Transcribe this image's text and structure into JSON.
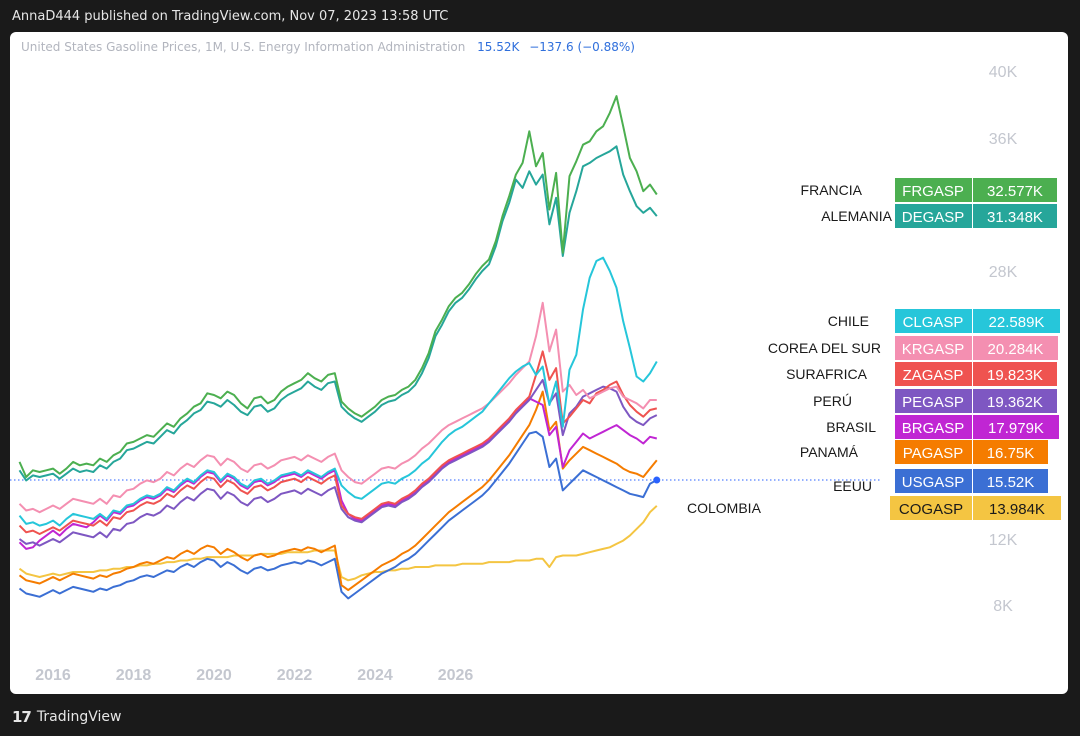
{
  "header": {
    "text": "AnnaD444 published on TradingView.com, Nov 07, 2023 13:58 UTC"
  },
  "legend": {
    "title": "United States Gasoline Prices, 1M, U.S. Energy Information Administration",
    "value": "15.52K",
    "change": "−137.6 (−0.88%)"
  },
  "footer": {
    "logo_glyph": "17",
    "brand": "TradingView"
  },
  "chart_data": {
    "type": "line",
    "x_ticks": [
      "2016",
      "2018",
      "2020",
      "2022",
      "2024",
      "2026"
    ],
    "y_ticks": [
      "8K",
      "12K",
      "28K",
      "36K",
      "40K"
    ],
    "y_tick_values": [
      8000,
      12000,
      28000,
      36000,
      40000
    ],
    "xlim": [
      "2015-07",
      "2027-04"
    ],
    "grid": false,
    "last_value_line_color": "#2962ff",
    "series": [
      {
        "country": "FRANCIA",
        "ticker": "FRGASP",
        "last": "32.577K",
        "color": "#4caf50",
        "values": [
          16600,
          15700,
          16100,
          16000,
          16100,
          16200,
          15900,
          16200,
          16600,
          16400,
          16500,
          16400,
          16800,
          16600,
          17000,
          17200,
          17700,
          17800,
          18000,
          18200,
          18100,
          18500,
          18900,
          18700,
          19200,
          19500,
          19900,
          20100,
          20700,
          20600,
          20400,
          20800,
          20600,
          20100,
          19800,
          20400,
          20500,
          20100,
          20300,
          20800,
          21100,
          21300,
          21500,
          21900,
          21600,
          21400,
          21800,
          21900,
          20200,
          19800,
          19500,
          19300,
          19600,
          19900,
          20300,
          20500,
          20600,
          20900,
          21100,
          21500,
          22200,
          23100,
          24400,
          25100,
          25900,
          26400,
          26700,
          27200,
          27800,
          28300,
          28700,
          29800,
          31300,
          32500,
          33800,
          34500,
          36400,
          34300,
          35100,
          31700,
          33900,
          29100,
          33700,
          34600,
          35600,
          35800,
          36400,
          36700,
          37500,
          38500,
          36700,
          34800,
          34000,
          32800,
          33200,
          32600
        ]
      },
      {
        "country": "ALEMANIA",
        "ticker": "DEGASP",
        "last": "31.348K",
        "color": "#26a69a",
        "values": [
          16100,
          15500,
          15800,
          15700,
          15800,
          15900,
          15600,
          15900,
          16200,
          16000,
          16100,
          16000,
          16400,
          16200,
          16600,
          16800,
          17300,
          17400,
          17600,
          17800,
          17700,
          18100,
          18500,
          18300,
          18800,
          19100,
          19500,
          19700,
          20200,
          20100,
          19900,
          20300,
          20000,
          19600,
          19400,
          19900,
          20000,
          19600,
          19800,
          20300,
          20600,
          20800,
          21000,
          21400,
          21100,
          20900,
          21300,
          21400,
          19900,
          19500,
          19200,
          19000,
          19300,
          19600,
          20000,
          20200,
          20300,
          20600,
          20800,
          21200,
          21900,
          22800,
          24100,
          24800,
          25600,
          26100,
          26400,
          26900,
          27500,
          28000,
          28400,
          29500,
          31000,
          32100,
          33500,
          33000,
          34000,
          33200,
          33800,
          30800,
          32400,
          28900,
          31500,
          32800,
          34300,
          34500,
          34800,
          35000,
          35200,
          35500,
          33800,
          32800,
          31900,
          31500,
          31800,
          31300
        ]
      },
      {
        "country": "CHILE",
        "ticker": "CLGASP",
        "last": "22.589K",
        "color": "#26c6da",
        "values": [
          13400,
          12900,
          13000,
          12800,
          12900,
          13100,
          12800,
          13200,
          13500,
          13400,
          13300,
          13200,
          13500,
          13200,
          13700,
          13600,
          14000,
          14100,
          14400,
          14600,
          14500,
          14700,
          15100,
          14900,
          15300,
          15600,
          15400,
          15800,
          16100,
          16000,
          15500,
          15900,
          15700,
          15300,
          15100,
          15500,
          15600,
          15300,
          15500,
          15800,
          15900,
          16000,
          15800,
          16100,
          15900,
          15700,
          16000,
          16200,
          15200,
          14800,
          14500,
          14400,
          14700,
          15000,
          15300,
          15400,
          15300,
          15600,
          15800,
          16100,
          16500,
          16800,
          17300,
          17800,
          18200,
          18500,
          18700,
          19000,
          19300,
          19600,
          20100,
          20600,
          21100,
          21600,
          22000,
          22300,
          22500,
          21800,
          22300,
          20000,
          21400,
          18700,
          22100,
          23000,
          25700,
          27600,
          28600,
          28800,
          28000,
          27000,
          25000,
          23400,
          21700,
          21400,
          21900,
          22600
        ]
      },
      {
        "country": "COREA DEL SUR",
        "ticker": "KRGASP",
        "last": "20.284K",
        "color": "#f48fb1",
        "values": [
          14100,
          13700,
          13800,
          13600,
          13800,
          14000,
          13800,
          14100,
          14400,
          14300,
          14200,
          14100,
          14400,
          14100,
          14600,
          14500,
          14900,
          15000,
          15300,
          15500,
          15400,
          15600,
          16000,
          15800,
          16200,
          16500,
          16300,
          16700,
          17000,
          16900,
          16400,
          16800,
          16600,
          16200,
          16000,
          16400,
          16500,
          16200,
          16400,
          16700,
          16800,
          16900,
          16700,
          17000,
          16800,
          16600,
          16900,
          17100,
          16100,
          15700,
          15400,
          15300,
          15600,
          15900,
          16200,
          16300,
          16200,
          16500,
          16700,
          17000,
          17400,
          17700,
          18100,
          18500,
          18800,
          19000,
          19200,
          19400,
          19600,
          19800,
          20100,
          20500,
          20900,
          21300,
          21800,
          22200,
          22600,
          24100,
          26100,
          23200,
          24500,
          20800,
          21200,
          20600,
          20900,
          20400,
          20600,
          20800,
          21000,
          21100,
          20500,
          20300,
          20100,
          19800,
          20300,
          20300
        ]
      },
      {
        "country": "SURAFRICA",
        "ticker": "ZAGASP",
        "last": "19.823K",
        "color": "#ef5350",
        "values": [
          12800,
          12400,
          12500,
          12300,
          12500,
          12700,
          12500,
          12800,
          13100,
          13000,
          12900,
          12800,
          13100,
          12800,
          13300,
          13200,
          13600,
          13700,
          14000,
          14200,
          14100,
          14300,
          14700,
          14500,
          14900,
          15200,
          15000,
          15400,
          15700,
          15600,
          15100,
          15500,
          15300,
          14900,
          14700,
          15100,
          15200,
          14900,
          15100,
          15400,
          15500,
          15600,
          15400,
          15700,
          15500,
          15300,
          15600,
          15800,
          14000,
          13500,
          13300,
          13200,
          13500,
          13800,
          14100,
          14200,
          14100,
          14400,
          14600,
          14900,
          15300,
          15600,
          16000,
          16400,
          16700,
          16900,
          17100,
          17300,
          17500,
          17700,
          18000,
          18400,
          18800,
          19200,
          19700,
          20100,
          20500,
          21800,
          23200,
          21500,
          22200,
          18900,
          19300,
          19800,
          20300,
          20100,
          20700,
          20900,
          21200,
          21400,
          20600,
          20000,
          19600,
          19300,
          19700,
          19800
        ]
      },
      {
        "country": "PERÚ",
        "ticker": "PEGASP",
        "last": "19.362K",
        "color": "#7e57c2",
        "values": [
          12000,
          11700,
          11800,
          11600,
          11800,
          12000,
          11800,
          12100,
          12400,
          12300,
          12200,
          12100,
          12400,
          12100,
          12600,
          12500,
          12900,
          13000,
          13300,
          13500,
          13400,
          13600,
          14000,
          13800,
          14200,
          14500,
          14300,
          14700,
          15000,
          14900,
          14400,
          14800,
          14600,
          14200,
          14000,
          14400,
          14500,
          14200,
          14400,
          14700,
          14800,
          14900,
          14700,
          15000,
          14800,
          14600,
          14900,
          15100,
          13800,
          13300,
          13100,
          13000,
          13300,
          13600,
          13900,
          14000,
          13900,
          14200,
          14400,
          14700,
          15100,
          15400,
          15800,
          16200,
          16500,
          16700,
          16900,
          17100,
          17300,
          17500,
          17800,
          18200,
          18600,
          19000,
          19500,
          19900,
          20300,
          20900,
          21500,
          20100,
          20700,
          18200,
          19500,
          19900,
          20500,
          20700,
          20900,
          21100,
          21000,
          20800,
          19900,
          19300,
          19000,
          18800,
          19200,
          19400
        ]
      },
      {
        "country": "BRASIL",
        "ticker": "BRGASP",
        "last": "17.979K",
        "color": "#c026d3",
        "values": [
          11800,
          11400,
          11500,
          11900,
          12200,
          12500,
          12200,
          12600,
          12900,
          12800,
          12700,
          13000,
          13400,
          13100,
          13600,
          13500,
          13900,
          14000,
          14300,
          14500,
          14400,
          14600,
          15000,
          14800,
          15200,
          15500,
          15300,
          15700,
          16000,
          15900,
          15400,
          15800,
          15600,
          15200,
          15000,
          15400,
          15500,
          15200,
          15400,
          15700,
          15800,
          15900,
          15700,
          16000,
          15800,
          15600,
          15900,
          16100,
          14300,
          13500,
          13200,
          13100,
          13400,
          13700,
          14000,
          14100,
          14000,
          14300,
          14500,
          14800,
          15200,
          15500,
          15900,
          16300,
          16600,
          16800,
          17000,
          17200,
          17400,
          17600,
          17900,
          18300,
          18700,
          19100,
          19600,
          20000,
          20400,
          20200,
          20000,
          18200,
          18700,
          16300,
          17300,
          17800,
          18300,
          18000,
          18200,
          18400,
          18600,
          18800,
          18500,
          18200,
          18000,
          17700,
          18100,
          18000
        ]
      },
      {
        "country": "PANAMÁ",
        "ticker": "PAGASP",
        "last": "16.75K",
        "color": "#f57c00",
        "values": [
          9800,
          9500,
          9400,
          9300,
          9500,
          9700,
          9500,
          9700,
          9900,
          9800,
          9700,
          9600,
          9800,
          9700,
          9900,
          10000,
          10200,
          10300,
          10500,
          10600,
          10500,
          10700,
          10900,
          10800,
          11100,
          11300,
          11100,
          11400,
          11600,
          11500,
          11100,
          11400,
          11200,
          10900,
          10700,
          11000,
          11100,
          10900,
          11000,
          11200,
          11300,
          11400,
          11300,
          11500,
          11400,
          11200,
          11400,
          11600,
          9200,
          8900,
          9200,
          9500,
          9800,
          10100,
          10400,
          10600,
          10800,
          11100,
          11300,
          11600,
          12000,
          12400,
          12800,
          13200,
          13600,
          13900,
          14200,
          14500,
          14800,
          15100,
          15500,
          16000,
          16500,
          17000,
          17600,
          18200,
          18800,
          19700,
          20800,
          18500,
          19000,
          16200,
          16700,
          17100,
          17500,
          17300,
          17100,
          16900,
          16700,
          16500,
          16200,
          16000,
          15900,
          15700,
          16200,
          16700
        ]
      },
      {
        "country": "EEUU",
        "ticker": "USGASP",
        "last": "15.52K",
        "color": "#3b6fd4",
        "values": [
          9000,
          8700,
          8600,
          8500,
          8700,
          8900,
          8700,
          8900,
          9100,
          9000,
          8900,
          8800,
          9000,
          8900,
          9100,
          9200,
          9400,
          9500,
          9700,
          9800,
          9700,
          9900,
          10100,
          10000,
          10300,
          10500,
          10300,
          10600,
          10800,
          10700,
          10300,
          10600,
          10400,
          10100,
          9900,
          10200,
          10300,
          10100,
          10200,
          10400,
          10500,
          10600,
          10500,
          10700,
          10600,
          10400,
          10600,
          10800,
          8800,
          8400,
          8700,
          9000,
          9300,
          9600,
          9900,
          10100,
          10300,
          10600,
          10800,
          11100,
          11500,
          11900,
          12300,
          12700,
          13100,
          13400,
          13700,
          14000,
          14300,
          14600,
          15000,
          15500,
          16000,
          16500,
          17100,
          17700,
          18300,
          18400,
          18100,
          16300,
          16800,
          14900,
          15300,
          15700,
          16100,
          15900,
          15700,
          15500,
          15300,
          15100,
          14900,
          14700,
          14600,
          14500,
          15300,
          15520
        ]
      },
      {
        "country": "COLOMBIA",
        "ticker": "COGASP",
        "last": "13.984K",
        "color": "#f4c542",
        "values": [
          10200,
          9900,
          9800,
          9700,
          9800,
          9900,
          9800,
          9900,
          10000,
          10000,
          10000,
          10000,
          10100,
          10100,
          10200,
          10200,
          10300,
          10300,
          10400,
          10400,
          10500,
          10500,
          10600,
          10600,
          10700,
          10700,
          10800,
          10800,
          10900,
          10900,
          10900,
          10900,
          11000,
          11000,
          11000,
          11000,
          11100,
          11100,
          11100,
          11100,
          11200,
          11200,
          11200,
          11200,
          11300,
          11300,
          11300,
          11300,
          9700,
          9500,
          9600,
          9800,
          9900,
          10000,
          10000,
          10100,
          10100,
          10200,
          10200,
          10300,
          10300,
          10300,
          10400,
          10400,
          10400,
          10400,
          10500,
          10500,
          10500,
          10500,
          10600,
          10600,
          10600,
          10600,
          10700,
          10700,
          10700,
          10800,
          10800,
          10300,
          10900,
          11000,
          11000,
          11000,
          11100,
          11200,
          11300,
          11400,
          11500,
          11700,
          11900,
          12200,
          12600,
          13000,
          13600,
          13984
        ]
      }
    ]
  }
}
